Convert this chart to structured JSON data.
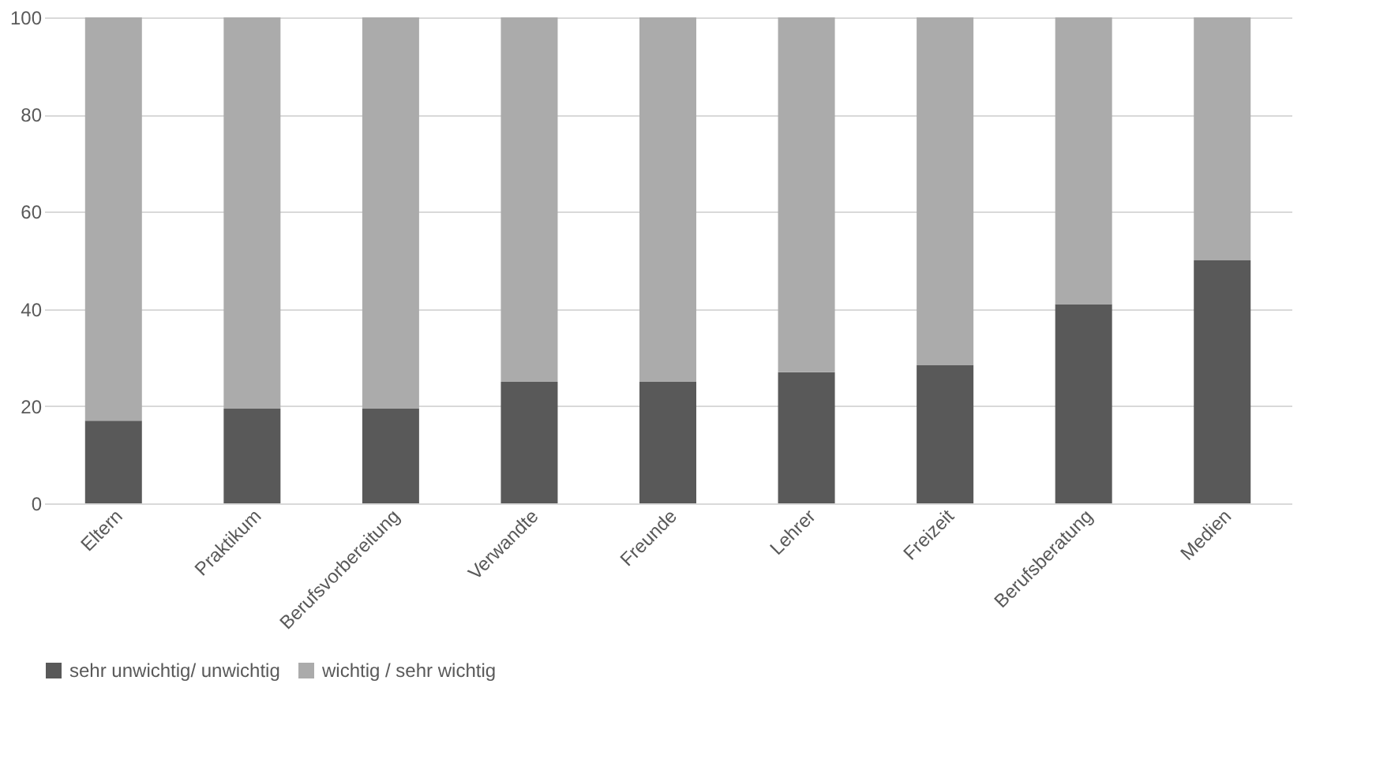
{
  "chart_data": {
    "type": "bar",
    "stacked": true,
    "categories": [
      "Eltern",
      "Praktikum",
      "Berufsvorbereitung",
      "Verwandte",
      "Freunde",
      "Lehrer",
      "Freizeit",
      "Berufsberatung",
      "Medien"
    ],
    "series": [
      {
        "name": "sehr unwichtig/ unwichtig",
        "color": "#595959",
        "values": [
          17,
          19.5,
          19.5,
          25,
          25,
          27,
          28.5,
          41,
          50
        ]
      },
      {
        "name": "wichtig / sehr wichtig",
        "color": "#ababab",
        "values": [
          83,
          80.5,
          80.5,
          75,
          75,
          73,
          71.5,
          59,
          50
        ]
      }
    ],
    "ylim": [
      0,
      100
    ],
    "yticks": [
      0,
      20,
      40,
      60,
      80,
      100
    ],
    "grid": "y",
    "legend": "bottom"
  }
}
